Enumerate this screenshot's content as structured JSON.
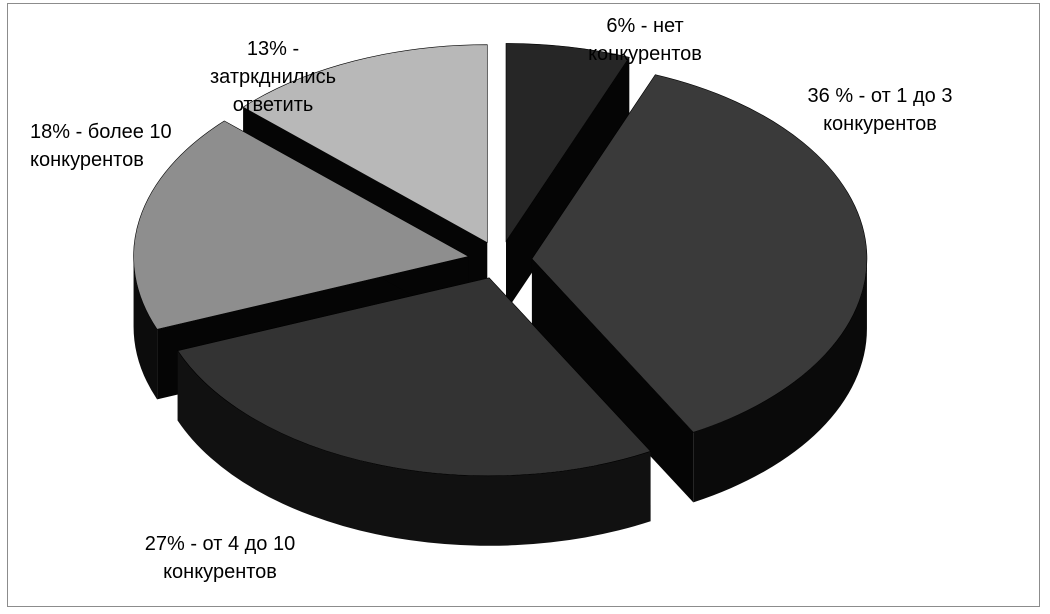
{
  "chart_data": {
    "type": "pie",
    "title": "",
    "three_d": true,
    "exploded": true,
    "start_angle_deg": 270,
    "direction": "clockwise",
    "slices": [
      {
        "value": 6,
        "label": "6% - нет\nконкурентов",
        "top_color": "#262626",
        "side_color": "#080808"
      },
      {
        "value": 36,
        "label": "36 % - от 1 до 3\nконкурентов",
        "top_color": "#3a3a3a",
        "side_color": "#0a0a0a"
      },
      {
        "value": 27,
        "label": "27% - от 4 до 10\nконкурентов",
        "top_color": "#333333",
        "side_color": "#111111"
      },
      {
        "value": 18,
        "label": "18% - более 10\nконкурентов",
        "top_color": "#8e8e8e",
        "side_color": "#0c0c0c"
      },
      {
        "value": 13,
        "label": "13% -\nзатркднились\nответить",
        "top_color": "#b8b8b8",
        "side_color": "#0b0b0b"
      }
    ],
    "legend": "none"
  }
}
